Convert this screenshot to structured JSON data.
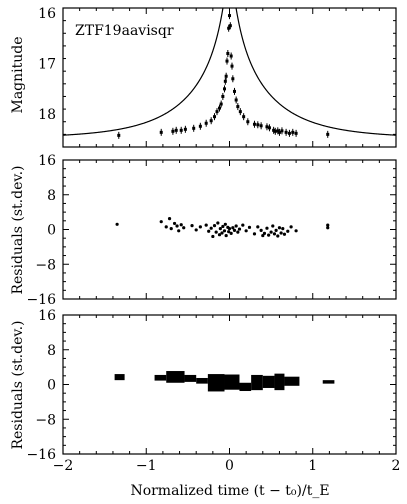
{
  "chart_data": [
    {
      "type": "scatter",
      "panel": "lightcurve",
      "label": "ZTF19aavisqr",
      "xlabel": "",
      "ylabel": "Magnitude",
      "xlim": [
        -2,
        2
      ],
      "ylim": [
        18.65,
        15.9
      ],
      "y_inverted": true,
      "xticks": [
        -2,
        -1,
        0,
        1,
        2
      ],
      "yticks": [
        16,
        17,
        18
      ],
      "yticklabels": [
        "16",
        "17",
        "18"
      ],
      "model": {
        "u0": 0.05,
        "base_mag": 18.48,
        "fs": 1.0
      },
      "points": [
        [
          -1.33,
          18.42
        ],
        [
          -0.82,
          18.36
        ],
        [
          -0.68,
          18.34
        ],
        [
          -0.64,
          18.32
        ],
        [
          -0.58,
          18.32
        ],
        [
          -0.53,
          18.3
        ],
        [
          -0.43,
          18.28
        ],
        [
          -0.35,
          18.24
        ],
        [
          -0.28,
          18.18
        ],
        [
          -0.22,
          18.13
        ],
        [
          -0.18,
          18.05
        ],
        [
          -0.15,
          17.95
        ],
        [
          -0.12,
          17.88
        ],
        [
          -0.1,
          17.8
        ],
        [
          -0.08,
          17.65
        ],
        [
          -0.06,
          17.5
        ],
        [
          -0.05,
          17.35
        ],
        [
          -0.04,
          17.25
        ],
        [
          -0.03,
          16.95
        ],
        [
          -0.02,
          16.8
        ],
        [
          -0.01,
          16.3
        ],
        [
          0.0,
          16.05
        ],
        [
          0.01,
          16.25
        ],
        [
          0.02,
          16.85
        ],
        [
          0.03,
          17.05
        ],
        [
          0.04,
          17.3
        ],
        [
          0.06,
          17.55
        ],
        [
          0.08,
          17.72
        ],
        [
          0.1,
          17.85
        ],
        [
          0.13,
          17.95
        ],
        [
          0.17,
          18.05
        ],
        [
          0.22,
          18.15
        ],
        [
          0.3,
          18.2
        ],
        [
          0.34,
          18.21
        ],
        [
          0.38,
          18.23
        ],
        [
          0.45,
          18.25
        ],
        [
          0.48,
          18.27
        ],
        [
          0.53,
          18.32
        ],
        [
          0.55,
          18.34
        ],
        [
          0.58,
          18.33
        ],
        [
          0.6,
          18.36
        ],
        [
          0.63,
          18.33
        ],
        [
          0.68,
          18.36
        ],
        [
          0.72,
          18.38
        ],
        [
          0.76,
          18.36
        ],
        [
          0.8,
          18.38
        ],
        [
          1.18,
          18.4
        ]
      ]
    },
    {
      "type": "scatter",
      "panel": "residuals-points",
      "xlabel": "",
      "ylabel": "Residuals (st.dev.)",
      "xlim": [
        -2,
        2
      ],
      "ylim": [
        -16,
        16
      ],
      "xticks": [
        -2,
        -1,
        0,
        1,
        2
      ],
      "yticks": [
        -16,
        -8,
        0,
        8,
        16
      ],
      "yticklabels": [
        "−16",
        "−8",
        "0",
        "8",
        "16"
      ],
      "points": [
        [
          -1.35,
          1.2
        ],
        [
          -0.82,
          1.8
        ],
        [
          -0.76,
          0.6
        ],
        [
          -0.72,
          2.5
        ],
        [
          -0.7,
          0.2
        ],
        [
          -0.66,
          1.4
        ],
        [
          -0.63,
          0.8
        ],
        [
          -0.61,
          -0.3
        ],
        [
          -0.58,
          1.1
        ],
        [
          -0.55,
          0.4
        ],
        [
          -0.45,
          0.9
        ],
        [
          -0.4,
          -0.1
        ],
        [
          -0.35,
          0.6
        ],
        [
          -0.28,
          1.0
        ],
        [
          -0.25,
          -0.4
        ],
        [
          -0.22,
          0.3
        ],
        [
          -0.2,
          -1.6
        ],
        [
          -0.18,
          0.9
        ],
        [
          -0.16,
          -0.6
        ],
        [
          -0.14,
          1.5
        ],
        [
          -0.12,
          -1.2
        ],
        [
          -0.11,
          0.2
        ],
        [
          -0.09,
          -0.8
        ],
        [
          -0.08,
          0.7
        ],
        [
          -0.06,
          -0.3
        ],
        [
          -0.05,
          1.2
        ],
        [
          -0.04,
          -1.4
        ],
        [
          -0.02,
          0.5
        ],
        [
          -0.01,
          -0.5
        ],
        [
          0.0,
          0.2
        ],
        [
          0.02,
          -0.9
        ],
        [
          0.04,
          0.4
        ],
        [
          0.06,
          -0.2
        ],
        [
          0.08,
          0.8
        ],
        [
          0.1,
          -0.6
        ],
        [
          0.12,
          0.1
        ],
        [
          0.16,
          1.0
        ],
        [
          0.2,
          -0.3
        ],
        [
          0.24,
          0.5
        ],
        [
          0.3,
          -1.0
        ],
        [
          0.34,
          0.6
        ],
        [
          0.38,
          -0.2
        ],
        [
          0.4,
          -1.4
        ],
        [
          0.42,
          -0.9
        ],
        [
          0.45,
          0.3
        ],
        [
          0.47,
          -1.3
        ],
        [
          0.5,
          -0.6
        ],
        [
          0.52,
          0.8
        ],
        [
          0.54,
          -1.0
        ],
        [
          0.56,
          -0.2
        ],
        [
          0.58,
          -1.5
        ],
        [
          0.6,
          0.4
        ],
        [
          0.62,
          -0.8
        ],
        [
          0.64,
          0.2
        ],
        [
          0.66,
          -1.1
        ],
        [
          0.7,
          -0.4
        ],
        [
          0.74,
          0.6
        ],
        [
          0.8,
          -0.3
        ],
        [
          1.18,
          0.4
        ],
        [
          1.18,
          1.0
        ]
      ]
    },
    {
      "type": "bar",
      "panel": "residuals-binned",
      "xlabel": "Normalized time (t − t₀)/t_E",
      "ylabel": "Residuals (st.dev.)",
      "xlim": [
        -2,
        2
      ],
      "ylim": [
        -16,
        16
      ],
      "xticks": [
        -2,
        -1,
        0,
        1,
        2
      ],
      "xticklabels": [
        "−2",
        "−1",
        "0",
        "1",
        "2"
      ],
      "yticks": [
        -16,
        -8,
        0,
        8,
        16
      ],
      "yticklabels": [
        "−16",
        "−8",
        "0",
        "8",
        "16"
      ],
      "bins": [
        [
          -1.38,
          -1.26,
          1.0,
          2.4
        ],
        [
          -0.9,
          -0.76,
          0.9,
          2.2
        ],
        [
          -0.76,
          -0.54,
          0.4,
          3.1
        ],
        [
          -0.54,
          -0.4,
          0.6,
          2.2
        ],
        [
          -0.4,
          -0.26,
          0.2,
          1.5
        ],
        [
          -0.26,
          -0.06,
          -1.6,
          2.4
        ],
        [
          -0.06,
          0.12,
          -1.2,
          2.3
        ],
        [
          0.12,
          0.26,
          -1.5,
          0.4
        ],
        [
          0.26,
          0.4,
          -1.3,
          2.2
        ],
        [
          0.4,
          0.54,
          -0.8,
          2.0
        ],
        [
          0.54,
          0.66,
          -1.3,
          2.5
        ],
        [
          0.66,
          0.84,
          -0.3,
          1.8
        ],
        [
          1.12,
          1.26,
          0.2,
          1.0
        ]
      ]
    }
  ]
}
